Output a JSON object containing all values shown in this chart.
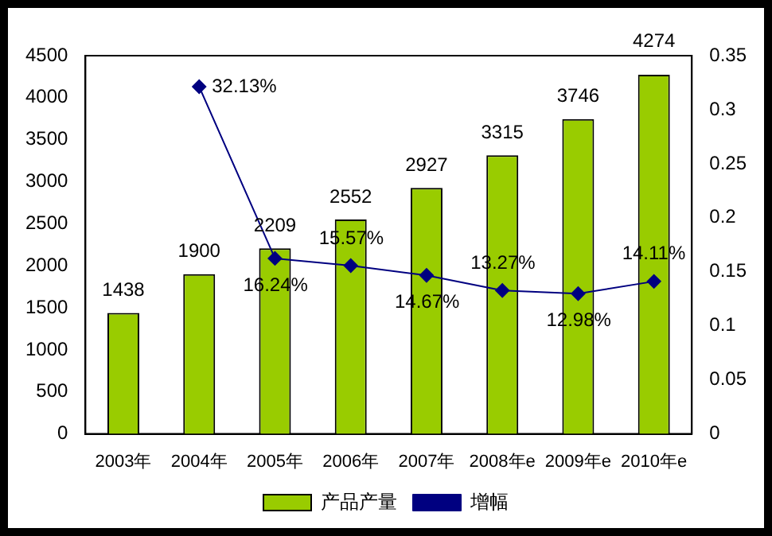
{
  "chart_data": {
    "type": "bar",
    "categories": [
      "2003年",
      "2004年",
      "2005年",
      "2006年",
      "2007年",
      "2008年e",
      "2009年e",
      "2010年e"
    ],
    "series": [
      {
        "name": "产品产量",
        "color": "#99cc00",
        "values": [
          1438,
          1900,
          2209,
          2552,
          2927,
          3315,
          3746,
          4274
        ],
        "value_labels": [
          "1438",
          "1900",
          "2209",
          "2552",
          "2927",
          "3315",
          "3746",
          "4274"
        ]
      },
      {
        "name": "增幅",
        "type": "line",
        "axis": "y2",
        "color": "#000080",
        "marker": "diamond",
        "values": [
          null,
          0.3213,
          0.1624,
          0.1557,
          0.1467,
          0.1327,
          0.1298,
          0.1411
        ],
        "value_labels": [
          null,
          "32.13%",
          "16.24%",
          "15.57%",
          "14.67%",
          "13.27%",
          "12.98%",
          "14.11%"
        ]
      }
    ],
    "ylim": [
      0,
      4500
    ],
    "yticks": [
      0,
      500,
      1000,
      1500,
      2000,
      2500,
      3000,
      3500,
      4000,
      4500
    ],
    "y2lim": [
      0,
      0.35
    ],
    "y2ticks": [
      0,
      0.05,
      0.1,
      0.15,
      0.2,
      0.25,
      0.3,
      0.35
    ],
    "grid": false,
    "legend": "bottom"
  }
}
